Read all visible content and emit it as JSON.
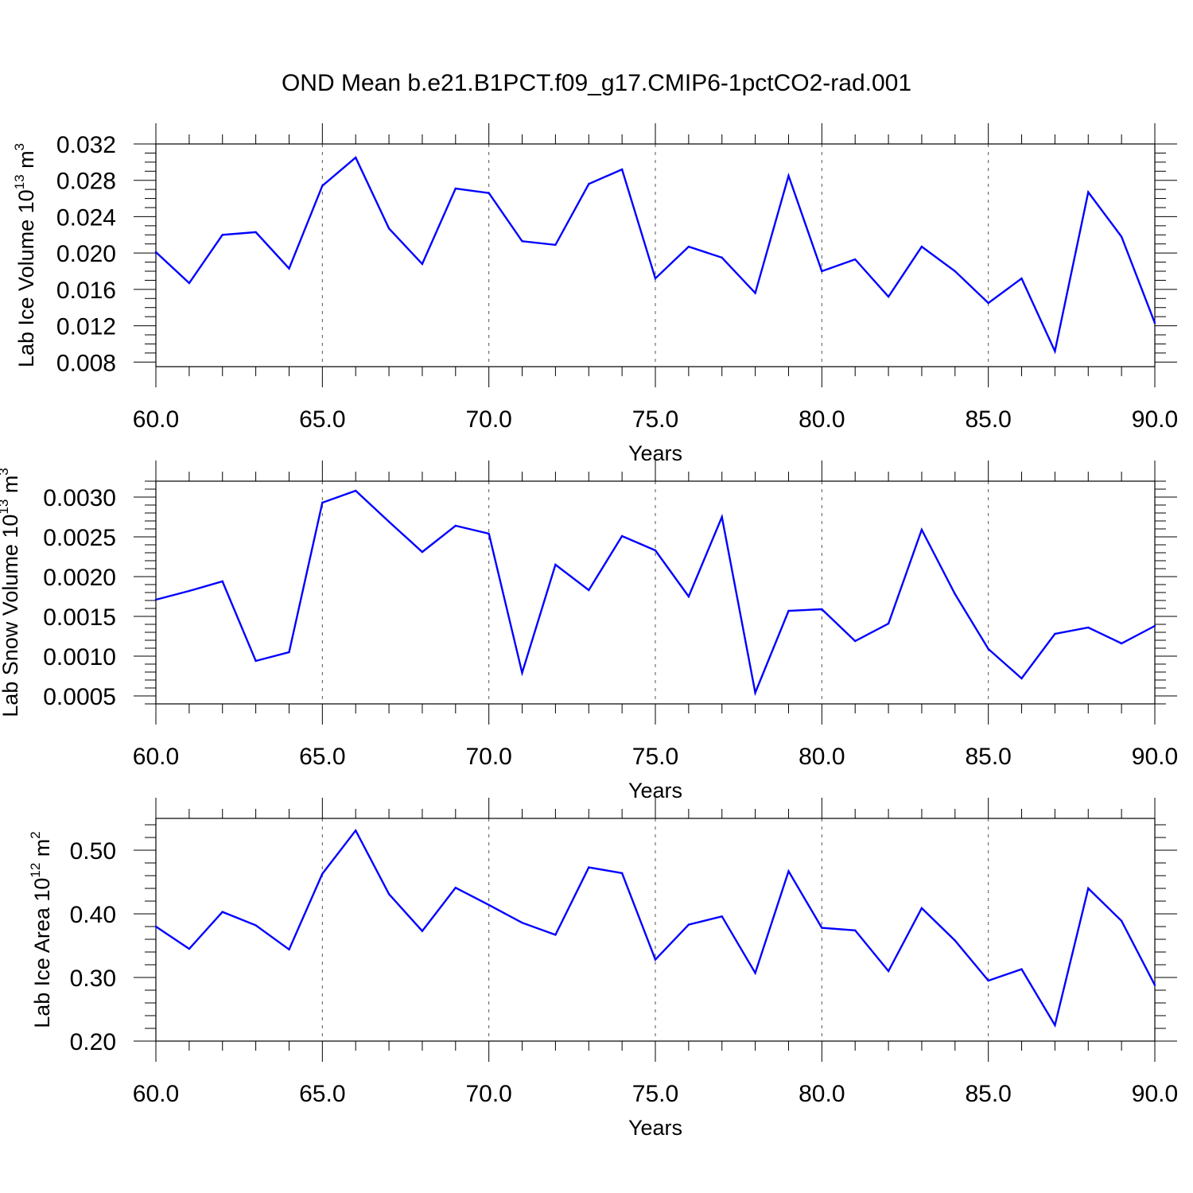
{
  "title": "OND Mean b.e21.B1PCT.f09_g17.CMIP6-1pctCO2-rad.001",
  "line_color": "#0000ff",
  "chart_data": [
    {
      "type": "line",
      "ylabel": "Lab Ice Volume 10",
      "ylabel_sup": "13",
      "ylabel_unit": " m",
      "ylabel_unit_sup": "3",
      "xlabel": "Years",
      "xlim": [
        60,
        90
      ],
      "ylim": [
        0.0075,
        0.032
      ],
      "xticks": [
        60,
        65,
        70,
        75,
        80,
        85,
        90
      ],
      "xtick_labels": [
        "60.0",
        "65.0",
        "70.0",
        "75.0",
        "80.0",
        "85.0",
        "90.0"
      ],
      "yticks": [
        0.008,
        0.012,
        0.016,
        0.02,
        0.024,
        0.028,
        0.032
      ],
      "ytick_labels": [
        "0.008",
        "0.012",
        "0.016",
        "0.020",
        "0.024",
        "0.028",
        "0.032"
      ],
      "y_minor_step": 0.001,
      "grid": "vertical dashed at major x ticks",
      "x": [
        60,
        61,
        62,
        63,
        64,
        65,
        66,
        67,
        68,
        69,
        70,
        71,
        72,
        73,
        74,
        75,
        76,
        77,
        78,
        79,
        80,
        81,
        82,
        83,
        84,
        85,
        86,
        87,
        88,
        89,
        90
      ],
      "values": [
        0.0201,
        0.0167,
        0.022,
        0.0223,
        0.0183,
        0.0274,
        0.0305,
        0.0227,
        0.0188,
        0.0271,
        0.0266,
        0.0213,
        0.0209,
        0.0276,
        0.0292,
        0.0172,
        0.0207,
        0.0195,
        0.0156,
        0.0285,
        0.018,
        0.0193,
        0.0152,
        0.0207,
        0.018,
        0.0145,
        0.0172,
        0.0092,
        0.0267,
        0.0218,
        0.0123
      ]
    },
    {
      "type": "line",
      "ylabel": "Lab Snow Volume 10",
      "ylabel_sup": "13",
      "ylabel_unit": " m",
      "ylabel_unit_sup": "3",
      "xlabel": "Years",
      "xlim": [
        60,
        90
      ],
      "ylim": [
        0.0004,
        0.0032
      ],
      "xticks": [
        60,
        65,
        70,
        75,
        80,
        85,
        90
      ],
      "xtick_labels": [
        "60.0",
        "65.0",
        "70.0",
        "75.0",
        "80.0",
        "85.0",
        "90.0"
      ],
      "yticks": [
        0.0005,
        0.001,
        0.0015,
        0.002,
        0.0025,
        0.003
      ],
      "ytick_labels": [
        "0.0005",
        "0.0010",
        "0.0015",
        "0.0020",
        "0.0025",
        "0.0030"
      ],
      "y_minor_step": 0.0001,
      "grid": "vertical dashed at major x ticks",
      "x": [
        60,
        61,
        62,
        63,
        64,
        65,
        66,
        67,
        68,
        69,
        70,
        71,
        72,
        73,
        74,
        75,
        76,
        77,
        78,
        79,
        80,
        81,
        82,
        83,
        84,
        85,
        86,
        87,
        88,
        89,
        90
      ],
      "values": [
        0.00171,
        0.00182,
        0.00194,
        0.00094,
        0.00105,
        0.00293,
        0.00308,
        0.00269,
        0.00231,
        0.00264,
        0.00254,
        0.00079,
        0.00215,
        0.00183,
        0.00251,
        0.00233,
        0.00175,
        0.00275,
        0.00054,
        0.00157,
        0.00159,
        0.00119,
        0.00141,
        0.00259,
        0.00178,
        0.00109,
        0.00072,
        0.00128,
        0.00136,
        0.00116,
        0.00138
      ]
    },
    {
      "type": "line",
      "ylabel": "Lab Ice Area 10",
      "ylabel_sup": "12",
      "ylabel_unit": " m",
      "ylabel_unit_sup": "2",
      "xlabel": "Years",
      "xlim": [
        60,
        90
      ],
      "ylim": [
        0.2,
        0.55
      ],
      "xticks": [
        60,
        65,
        70,
        75,
        80,
        85,
        90
      ],
      "xtick_labels": [
        "60.0",
        "65.0",
        "70.0",
        "75.0",
        "80.0",
        "85.0",
        "90.0"
      ],
      "yticks": [
        0.2,
        0.3,
        0.4,
        0.5
      ],
      "ytick_labels": [
        "0.20",
        "0.30",
        "0.40",
        "0.50"
      ],
      "y_minor_step": 0.02,
      "grid": "vertical dashed at major x ticks",
      "x": [
        60,
        61,
        62,
        63,
        64,
        65,
        66,
        67,
        68,
        69,
        70,
        71,
        72,
        73,
        74,
        75,
        76,
        77,
        78,
        79,
        80,
        81,
        82,
        83,
        84,
        85,
        86,
        87,
        88,
        89,
        90
      ],
      "values": [
        0.38,
        0.345,
        0.403,
        0.382,
        0.344,
        0.463,
        0.531,
        0.431,
        0.373,
        0.441,
        0.414,
        0.386,
        0.367,
        0.473,
        0.464,
        0.328,
        0.383,
        0.396,
        0.307,
        0.467,
        0.378,
        0.374,
        0.31,
        0.409,
        0.358,
        0.295,
        0.313,
        0.225,
        0.44,
        0.389,
        0.288
      ]
    }
  ]
}
